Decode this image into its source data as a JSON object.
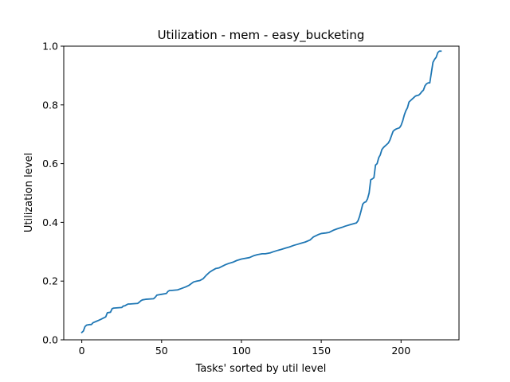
{
  "chart_data": {
    "type": "line",
    "title": "Utilization - mem - easy_bucketing",
    "xlabel": "Tasks' sorted by util level",
    "ylabel": "Utilization level",
    "xlim": [
      -11.3,
      236.3
    ],
    "ylim": [
      0.0,
      1.0
    ],
    "xticks": [
      0,
      50,
      100,
      150,
      200
    ],
    "xtick_labels": [
      "0",
      "50",
      "100",
      "150",
      "200"
    ],
    "yticks": [
      0.0,
      0.2,
      0.4,
      0.6,
      0.8,
      1.0
    ],
    "ytick_labels": [
      "0.0",
      "0.2",
      "0.4",
      "0.6",
      "0.8",
      "1.0"
    ],
    "grid": false,
    "legend": "none",
    "series": [
      {
        "color": "#1f77b4",
        "x": [
          0,
          1,
          2,
          3,
          5,
          6,
          7,
          10,
          12,
          15,
          16,
          17,
          18,
          19,
          20,
          25,
          26,
          27,
          28,
          29,
          30,
          35,
          36,
          37,
          38,
          40,
          45,
          46,
          47,
          48,
          50,
          53,
          54,
          55,
          56,
          60,
          62,
          63,
          65,
          67,
          70,
          72,
          74,
          76,
          78,
          80,
          82,
          84,
          86,
          90,
          92,
          95,
          97,
          100,
          105,
          108,
          110,
          113,
          115,
          118,
          120,
          123,
          125,
          128,
          130,
          133,
          135,
          138,
          140,
          143,
          145,
          148,
          150,
          153,
          155,
          158,
          160,
          163,
          165,
          168,
          170,
          172,
          173,
          174,
          175,
          176,
          177,
          178,
          179,
          180,
          181,
          182,
          183,
          184,
          185,
          186,
          187,
          188,
          189,
          190,
          191,
          192,
          193,
          194,
          195,
          196,
          197,
          198,
          199,
          200,
          201,
          202,
          203,
          204,
          205,
          206,
          207,
          208,
          209,
          210,
          211,
          212,
          213,
          214,
          215,
          216,
          217,
          218,
          219,
          220,
          221,
          222,
          223,
          224,
          225
        ],
        "y": [
          0.025,
          0.03,
          0.045,
          0.05,
          0.052,
          0.052,
          0.058,
          0.065,
          0.07,
          0.078,
          0.092,
          0.093,
          0.094,
          0.106,
          0.108,
          0.11,
          0.115,
          0.116,
          0.119,
          0.122,
          0.122,
          0.124,
          0.128,
          0.133,
          0.136,
          0.138,
          0.14,
          0.145,
          0.152,
          0.153,
          0.155,
          0.158,
          0.165,
          0.168,
          0.168,
          0.17,
          0.174,
          0.176,
          0.18,
          0.185,
          0.197,
          0.2,
          0.202,
          0.208,
          0.22,
          0.23,
          0.237,
          0.243,
          0.245,
          0.256,
          0.26,
          0.265,
          0.27,
          0.275,
          0.28,
          0.287,
          0.29,
          0.293,
          0.293,
          0.296,
          0.3,
          0.305,
          0.308,
          0.313,
          0.316,
          0.322,
          0.325,
          0.33,
          0.333,
          0.34,
          0.35,
          0.358,
          0.362,
          0.364,
          0.366,
          0.374,
          0.378,
          0.383,
          0.387,
          0.392,
          0.395,
          0.398,
          0.405,
          0.42,
          0.44,
          0.462,
          0.468,
          0.47,
          0.48,
          0.5,
          0.545,
          0.548,
          0.552,
          0.595,
          0.6,
          0.62,
          0.63,
          0.648,
          0.655,
          0.66,
          0.665,
          0.67,
          0.68,
          0.695,
          0.71,
          0.715,
          0.718,
          0.72,
          0.722,
          0.73,
          0.745,
          0.765,
          0.78,
          0.79,
          0.81,
          0.815,
          0.82,
          0.825,
          0.83,
          0.832,
          0.833,
          0.838,
          0.845,
          0.85,
          0.865,
          0.872,
          0.875,
          0.875,
          0.91,
          0.945,
          0.955,
          0.962,
          0.978,
          0.983,
          0.983
        ]
      }
    ]
  }
}
